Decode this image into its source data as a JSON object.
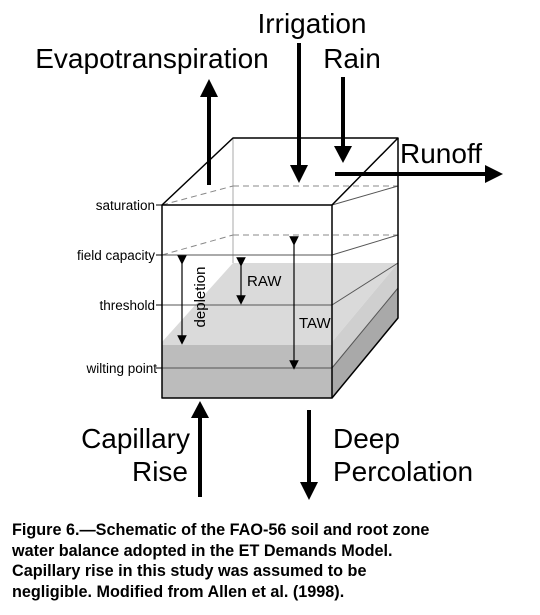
{
  "labels": {
    "irrigation": "Irrigation",
    "evapotranspiration": "Evapotranspiration",
    "rain": "Rain",
    "runoff": "Runoff",
    "saturation": "saturation",
    "field_capacity": "field capacity",
    "threshold": "threshold",
    "wilting_point": "wilting point",
    "depletion": "depletion",
    "raw": "RAW",
    "taw": "TAW",
    "capillary": "Capillary",
    "rise": "Rise",
    "deep": "Deep",
    "percolation": "Percolation"
  },
  "caption": {
    "line1": "Figure 6.—Schematic of the FAO-56 soil and root zone",
    "line2": "water balance adopted in the ET Demands Model.",
    "line3": "Capillary rise in this study was assumed to be",
    "line4": "negligible.  Modified from Allen et al. (1998)."
  },
  "colors": {
    "light_zone": "#dadada",
    "dark_zone": "#bcbcbc",
    "line": "#000000",
    "dashed": "#888888"
  }
}
